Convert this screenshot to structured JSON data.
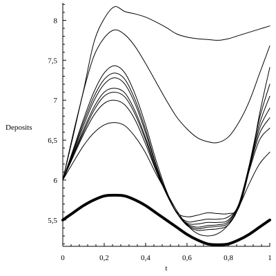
{
  "chart_data": {
    "type": "line",
    "title": "",
    "xlabel": "t",
    "ylabel": "Deposits",
    "xlim": [
      0,
      1
    ],
    "ylim": [
      5.17,
      8.22
    ],
    "x_ticks": [
      "0",
      "0,2",
      "0,4",
      "0,6",
      "0,8",
      "1"
    ],
    "y_ticks": [
      "5,5",
      "6",
      "6,5",
      "7",
      "7,5",
      "8"
    ],
    "grid": false,
    "legend": "none",
    "x": [
      0,
      0.05,
      0.1,
      0.15,
      0.2,
      0.25,
      0.3,
      0.35,
      0.4,
      0.45,
      0.5,
      0.55,
      0.6,
      0.65,
      0.7,
      0.75,
      0.8,
      0.85,
      0.9,
      0.95,
      1
    ],
    "series": [
      {
        "values": [
          6.0,
          6.58,
          7.12,
          7.72,
          8.02,
          8.17,
          8.11,
          8.08,
          8.04,
          7.98,
          7.91,
          7.83,
          7.79,
          7.77,
          7.76,
          7.75,
          7.77,
          7.81,
          7.85,
          7.89,
          7.93
        ]
      },
      {
        "values": [
          6.0,
          6.55,
          7.11,
          7.55,
          7.78,
          7.88,
          7.82,
          7.67,
          7.46,
          7.23,
          7.0,
          6.79,
          6.64,
          6.53,
          6.48,
          6.47,
          6.54,
          6.72,
          6.98,
          7.33,
          7.68
        ]
      },
      {
        "values": [
          6.0,
          6.38,
          6.76,
          7.1,
          7.34,
          7.43,
          7.34,
          7.07,
          6.69,
          6.25,
          5.87,
          5.6,
          5.54,
          5.56,
          5.59,
          5.58,
          5.58,
          5.65,
          6.12,
          6.82,
          7.41
        ]
      },
      {
        "values": [
          6.0,
          6.36,
          6.72,
          7.04,
          7.26,
          7.34,
          7.26,
          7.0,
          6.63,
          6.2,
          5.85,
          5.59,
          5.48,
          5.49,
          5.51,
          5.51,
          5.54,
          5.69,
          6.18,
          6.77,
          7.2
        ]
      },
      {
        "values": [
          6.0,
          6.34,
          6.68,
          6.99,
          7.2,
          7.28,
          7.2,
          6.95,
          6.59,
          6.18,
          5.84,
          5.59,
          5.46,
          5.45,
          5.47,
          5.47,
          5.5,
          5.7,
          6.17,
          6.7,
          7.05
        ]
      },
      {
        "values": [
          6.0,
          6.32,
          6.63,
          6.91,
          7.1,
          7.15,
          7.09,
          6.86,
          6.53,
          6.15,
          5.84,
          5.59,
          5.45,
          5.41,
          5.43,
          5.44,
          5.48,
          5.69,
          6.15,
          6.64,
          6.9
        ]
      },
      {
        "values": [
          6.0,
          6.31,
          6.6,
          6.87,
          7.05,
          7.1,
          7.04,
          6.82,
          6.5,
          6.14,
          5.83,
          5.59,
          5.44,
          5.39,
          5.41,
          5.42,
          5.46,
          5.67,
          6.13,
          6.58,
          6.78
        ]
      },
      {
        "values": [
          6.0,
          6.29,
          6.57,
          6.81,
          6.96,
          7.0,
          6.94,
          6.75,
          6.45,
          6.12,
          5.83,
          5.59,
          5.43,
          5.37,
          5.38,
          5.39,
          5.44,
          5.66,
          6.11,
          6.5,
          6.65
        ]
      },
      {
        "values": [
          6.0,
          6.22,
          6.43,
          6.59,
          6.69,
          6.72,
          6.68,
          6.54,
          6.34,
          6.08,
          5.85,
          5.62,
          5.44,
          5.33,
          5.3,
          5.33,
          5.44,
          5.66,
          5.95,
          6.2,
          6.35
        ]
      },
      {
        "values": [
          5.5,
          5.59,
          5.68,
          5.75,
          5.8,
          5.81,
          5.8,
          5.75,
          5.68,
          5.59,
          5.5,
          5.41,
          5.32,
          5.25,
          5.2,
          5.19,
          5.2,
          5.25,
          5.32,
          5.41,
          5.5
        ],
        "emphasis": "bold"
      }
    ]
  }
}
